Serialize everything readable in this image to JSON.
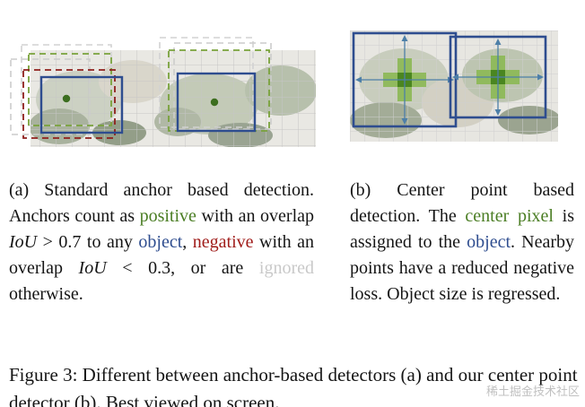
{
  "colors": {
    "green": "#4a7d23",
    "blue": "#2e4d8f",
    "red": "#a01c1a",
    "gray": "#c9c9c9",
    "box_blue": "#2e4d8f",
    "anchor_green": "#79a23b",
    "anchor_red": "#8e1f1c",
    "anchor_gray": "#cccccc",
    "center_dot_green": "#3c6e1f",
    "center_pixel_light": "#8cb956",
    "center_pixel_dark": "#4a8620",
    "arrow_blue": "#4d7fa8"
  },
  "captions": {
    "a": {
      "segments": [
        {
          "text": "(a) Standard anchor based detection.  Anchors count as "
        },
        {
          "text": "positive",
          "color": "green"
        },
        {
          "text": " with an overlap "
        },
        {
          "text": "IoU",
          "math": true
        },
        {
          "text": " > 0.7 to any "
        },
        {
          "text": "object",
          "color": "blue"
        },
        {
          "text": ", "
        },
        {
          "text": "negative",
          "color": "red"
        },
        {
          "text": " with an overlap "
        },
        {
          "text": "IoU",
          "math": true
        },
        {
          "text": " < 0.3, or are "
        },
        {
          "text": "ignored",
          "color": "gray"
        },
        {
          "text": " otherwise."
        }
      ]
    },
    "b": {
      "segments": [
        {
          "text": "(b) Center point based detection.  The "
        },
        {
          "text": "center pixel",
          "color": "green"
        },
        {
          "text": " is assigned to the "
        },
        {
          "text": "object",
          "color": "blue"
        },
        {
          "text": ". Nearby points have a reduced negative loss. Object size is regressed."
        }
      ]
    }
  },
  "figure_caption": "Figure 3: Different between anchor-based detectors (a) and our center point detector (b). Best viewed on screen.",
  "watermark": "稀土掘金技术社区"
}
